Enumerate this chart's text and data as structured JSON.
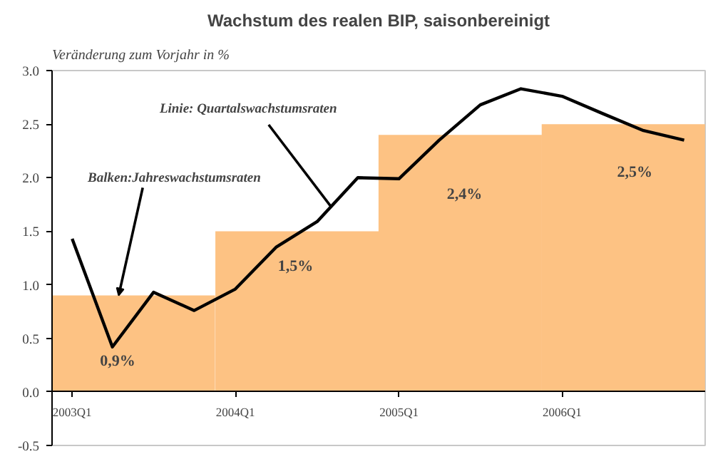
{
  "chart_data": {
    "type": "bar",
    "title": "Wachstum des realen BIP, saisonbereinigt",
    "ylabel": "Veränderung zum Vorjahr in %",
    "xlim": [
      "2003-01-01",
      "2007-01-01"
    ],
    "xticks": [
      {
        "value": "2003-02-15",
        "label": "2003Q1"
      },
      {
        "value": "2004-02-15",
        "label": "2004Q1"
      },
      {
        "value": "2005-02-15",
        "label": "2005Q1"
      },
      {
        "value": "2006-02-15",
        "label": "2006Q1"
      }
    ],
    "ylim": [
      -0.5,
      3.0
    ],
    "yticks": [
      {
        "value": -0.5,
        "label": "-0.5"
      },
      {
        "value": 0,
        "label": "0.0"
      },
      {
        "value": 0.5,
        "label": "0.5"
      },
      {
        "value": 1,
        "label": "1.0"
      },
      {
        "value": 1.5,
        "label": "1.5"
      },
      {
        "value": 2,
        "label": "2.0"
      },
      {
        "value": 2.5,
        "label": "2.5"
      },
      {
        "value": 3,
        "label": "3.0"
      }
    ],
    "series": [
      {
        "color": "#fdc283",
        "x": [
          "2003-07-02",
          "2004-07-02",
          "2005-07-02",
          "2006-07-02"
        ],
        "values": [
          0.9,
          1.5,
          2.4,
          2.5
        ],
        "value_labels": [
          "0,9%",
          "1,5%",
          "2,4%",
          "2,5%"
        ]
      },
      {
        "type": "line",
        "color": "#000000",
        "x": [
          "2003-02-15",
          "2003-05-16",
          "2003-08-16",
          "2003-11-15",
          "2004-02-15",
          "2004-05-16",
          "2004-08-16",
          "2004-11-15",
          "2005-02-15",
          "2005-05-16",
          "2005-08-16",
          "2005-11-15",
          "2006-02-15",
          "2006-05-16",
          "2006-08-16",
          "2006-11-15"
        ],
        "values": [
          1.43,
          0.42,
          0.93,
          0.76,
          0.96,
          1.35,
          1.59,
          2.0,
          1.99,
          2.35,
          2.68,
          2.83,
          2.76,
          2.6,
          2.44,
          2.35
        ]
      }
    ],
    "annotations": [
      {
        "text": "Linie: Quartalswachstumsraten",
        "x": "2004-09-16",
        "y": 1.73
      },
      {
        "text": "Balken:Jahreswachstumsraten",
        "x": "2003-05-30",
        "y": 0.9
      }
    ],
    "grid": false,
    "marker": "none",
    "line_style": "solid"
  }
}
